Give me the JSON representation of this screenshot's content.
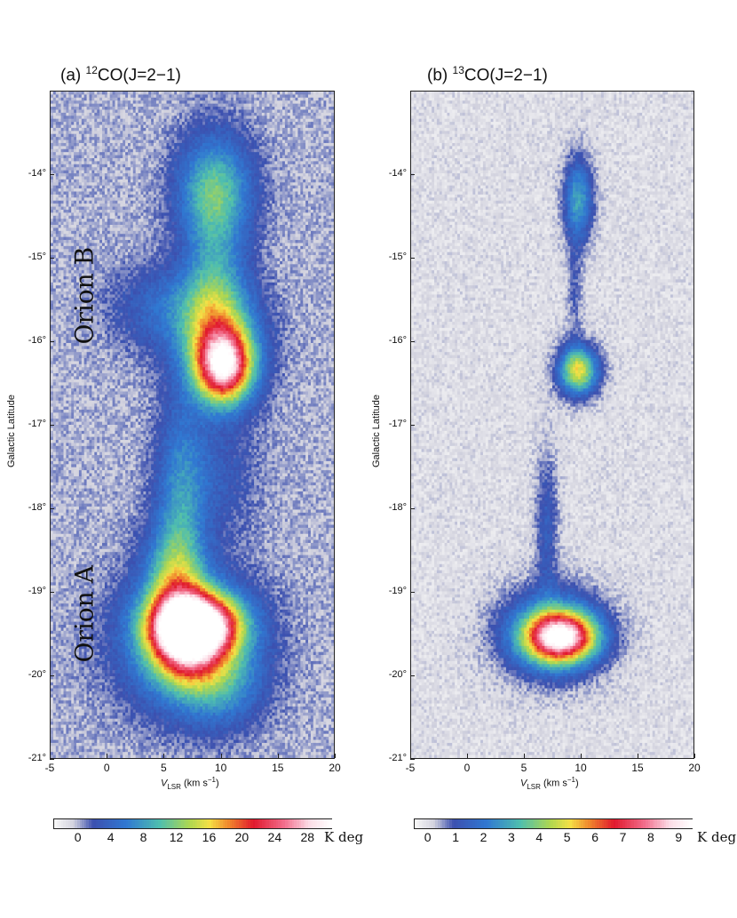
{
  "chart_data": [
    {
      "type": "heatmap",
      "panel_label": "(a)",
      "title_super": "12",
      "title_main": "CO(J=2−1)",
      "xlabel_main": "V",
      "xlabel_sub": "LSR",
      "xlabel_rest": " (km s",
      "xlabel_sup": "−1",
      "xlabel_close": ")",
      "ylabel": "Galactic Latitude",
      "xlim": [
        -5,
        20
      ],
      "ylim": [
        -21,
        -13
      ],
      "x_ticks": [
        "-5",
        "0",
        "5",
        "10",
        "15",
        "20"
      ],
      "y_ticks": [
        "-14°",
        "-15°",
        "-16°",
        "-17°",
        "-18°",
        "-19°",
        "-20°",
        "-21°"
      ],
      "annotations": [
        "Orion B",
        "Orion A"
      ],
      "colorbar_ticks": [
        "0",
        "4",
        "8",
        "12",
        "16",
        "20",
        "24",
        "28"
      ],
      "colorbar_unit": "K deg",
      "colorbar_range": [
        -3,
        31
      ],
      "components": [
        {
          "v": 9.5,
          "b": -14.2,
          "sv": 2.2,
          "sb": 0.45,
          "peak": 11
        },
        {
          "v": 9.5,
          "b": -15.4,
          "sv": 1.8,
          "sb": 0.6,
          "peak": 7
        },
        {
          "v": 6.0,
          "b": -15.6,
          "sv": 3.5,
          "sb": 0.35,
          "peak": 5
        },
        {
          "v": 10.3,
          "b": -16.3,
          "sv": 1.7,
          "sb": 0.3,
          "peak": 24
        },
        {
          "v": 10.0,
          "b": -16.0,
          "sv": 2.5,
          "sb": 0.45,
          "peak": 9
        },
        {
          "v": 6.5,
          "b": -17.8,
          "sv": 1.5,
          "sb": 0.8,
          "peak": 6
        },
        {
          "v": 9.5,
          "b": -17.6,
          "sv": 2.5,
          "sb": 0.5,
          "peak": 3
        },
        {
          "v": 6.0,
          "b": -18.9,
          "sv": 1.8,
          "sb": 0.5,
          "peak": 10
        },
        {
          "v": 8.0,
          "b": -19.4,
          "sv": 2.6,
          "sb": 0.25,
          "peak": 26
        },
        {
          "v": 7.0,
          "b": -19.6,
          "sv": 2.2,
          "sb": 0.35,
          "peak": 16
        },
        {
          "v": 7.0,
          "b": -19.6,
          "sv": 4.0,
          "sb": 0.55,
          "peak": 9
        },
        {
          "v": 10.0,
          "b": -20.1,
          "sv": 2.5,
          "sb": 0.35,
          "peak": 6
        }
      ]
    },
    {
      "type": "heatmap",
      "panel_label": "(b)",
      "title_super": "13",
      "title_main": "CO(J=2−1)",
      "xlabel_main": "V",
      "xlabel_sub": "LSR",
      "xlabel_rest": " (km s",
      "xlabel_sup": "−1",
      "xlabel_close": ")",
      "ylabel": "Galactic Latitude",
      "xlim": [
        -5,
        20
      ],
      "ylim": [
        -21,
        -13
      ],
      "x_ticks": [
        "-5",
        "0",
        "5",
        "10",
        "15",
        "20"
      ],
      "y_ticks": [
        "-14°",
        "-15°",
        "-16°",
        "-17°",
        "-18°",
        "-19°",
        "-20°",
        "-21°"
      ],
      "annotations": [],
      "colorbar_ticks": [
        "0",
        "1",
        "2",
        "3",
        "4",
        "5",
        "6",
        "7",
        "8",
        "9"
      ],
      "colorbar_unit": "K deg",
      "colorbar_range": [
        -0.5,
        9.5
      ],
      "components": [
        {
          "v": 9.8,
          "b": -14.3,
          "sv": 0.9,
          "sb": 0.35,
          "peak": 2.8
        },
        {
          "v": 9.5,
          "b": -15.4,
          "sv": 0.5,
          "sb": 0.5,
          "peak": 0.8
        },
        {
          "v": 9.8,
          "b": -16.35,
          "sv": 1.2,
          "sb": 0.2,
          "peak": 5.0
        },
        {
          "v": 7.0,
          "b": -18.2,
          "sv": 0.7,
          "sb": 0.6,
          "peak": 1.3
        },
        {
          "v": 8.3,
          "b": -19.55,
          "sv": 2.1,
          "sb": 0.2,
          "peak": 7.2
        },
        {
          "v": 7.5,
          "b": -19.5,
          "sv": 3.0,
          "sb": 0.35,
          "peak": 3.5
        }
      ]
    }
  ]
}
